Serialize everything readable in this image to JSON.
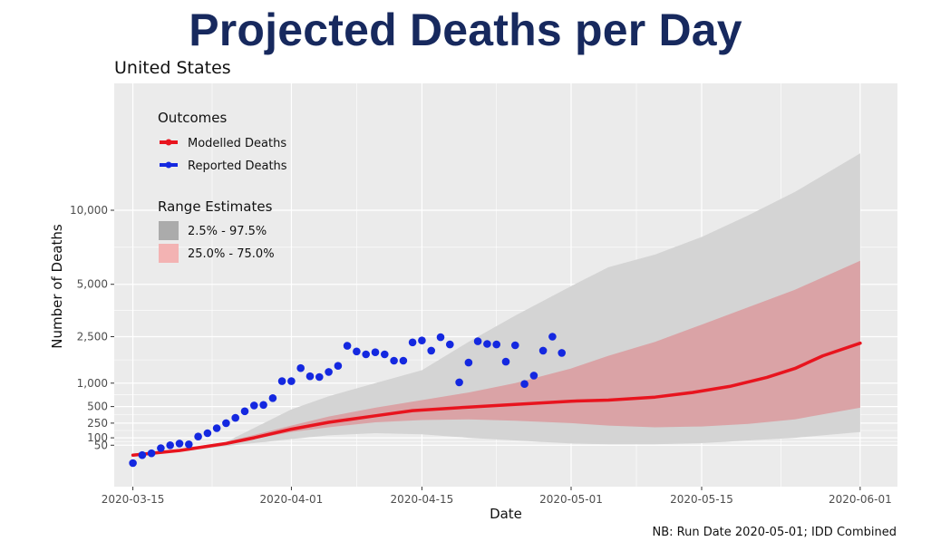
{
  "title": "Projected Deaths per Day",
  "subtitle": "United States",
  "footnote": "NB: Run Date 2020-05-01; IDD Combined",
  "colors": {
    "panel": "#ebebeb",
    "grid": "#ffffff",
    "modelled": "#e8141e",
    "reported": "#1428e0",
    "band_outer": "#d4d4d4",
    "band_inner": "#db9a9e",
    "legend_outer": "#ababab",
    "legend_inner": "#f3b3b3"
  },
  "chart_data": {
    "type": "line",
    "xlabel": "Date",
    "ylabel": "Number of Deaths",
    "x_ticks": [
      "2020-03-15",
      "2020-04-01",
      "2020-04-15",
      "2020-05-01",
      "2020-05-15",
      "2020-06-01"
    ],
    "y_ticks": [
      50,
      100,
      250,
      500,
      1000,
      2500,
      5000,
      10000
    ],
    "y_tick_labels": [
      "50",
      "100",
      "250",
      "500",
      "1,000",
      "2,500",
      "5,000",
      "10,000"
    ],
    "xlim": [
      "2020-03-13",
      "2020-06-05"
    ],
    "y_scale": "square-root",
    "legend": {
      "outcomes_title": "Outcomes",
      "outcomes": [
        "Modelled Deaths",
        "Reported Deaths"
      ],
      "range_title": "Range Estimates",
      "ranges": [
        "2.5% - 97.5%",
        "25.0% - 75.0%"
      ],
      "position": "top-left"
    },
    "modelled": [
      [
        "2020-03-15",
        10
      ],
      [
        "2020-03-20",
        25
      ],
      [
        "2020-03-25",
        60
      ],
      [
        "2020-03-28",
        100
      ],
      [
        "2020-04-01",
        180
      ],
      [
        "2020-04-05",
        260
      ],
      [
        "2020-04-10",
        350
      ],
      [
        "2020-04-14",
        430
      ],
      [
        "2020-04-20",
        490
      ],
      [
        "2020-04-25",
        540
      ],
      [
        "2020-05-01",
        600
      ],
      [
        "2020-05-05",
        620
      ],
      [
        "2020-05-10",
        680
      ],
      [
        "2020-05-14",
        780
      ],
      [
        "2020-05-18",
        920
      ],
      [
        "2020-05-22",
        1150
      ],
      [
        "2020-05-25",
        1400
      ],
      [
        "2020-05-28",
        1800
      ],
      [
        "2020-06-01",
        2250
      ]
    ],
    "band_2_5_97_5": [
      [
        "2020-03-15",
        8,
        12
      ],
      [
        "2020-03-20",
        20,
        32
      ],
      [
        "2020-03-25",
        45,
        70
      ],
      [
        "2020-04-01",
        90,
        450
      ],
      [
        "2020-04-05",
        120,
        700
      ],
      [
        "2020-04-10",
        140,
        1000
      ],
      [
        "2020-04-15",
        130,
        1350
      ],
      [
        "2020-04-20",
        100,
        2300
      ],
      [
        "2020-04-25",
        80,
        3400
      ],
      [
        "2020-05-01",
        60,
        4900
      ],
      [
        "2020-05-05",
        55,
        6000
      ],
      [
        "2020-05-10",
        55,
        6800
      ],
      [
        "2020-05-15",
        62,
        8000
      ],
      [
        "2020-05-20",
        80,
        9600
      ],
      [
        "2020-05-25",
        100,
        11500
      ],
      [
        "2020-06-01",
        150,
        15000
      ]
    ],
    "band_25_75": [
      [
        "2020-03-15",
        9,
        11
      ],
      [
        "2020-03-20",
        22,
        28
      ],
      [
        "2020-03-25",
        55,
        70
      ],
      [
        "2020-04-01",
        150,
        220
      ],
      [
        "2020-04-05",
        200,
        340
      ],
      [
        "2020-04-10",
        260,
        480
      ],
      [
        "2020-04-15",
        290,
        620
      ],
      [
        "2020-04-20",
        300,
        780
      ],
      [
        "2020-04-25",
        280,
        1000
      ],
      [
        "2020-05-01",
        250,
        1400
      ],
      [
        "2020-05-05",
        220,
        1800
      ],
      [
        "2020-05-10",
        200,
        2300
      ],
      [
        "2020-05-15",
        210,
        3000
      ],
      [
        "2020-05-20",
        240,
        3800
      ],
      [
        "2020-05-25",
        300,
        4700
      ],
      [
        "2020-06-01",
        480,
        6400
      ]
    ],
    "reported": [
      [
        "2020-03-15",
        0
      ],
      [
        "2020-03-16",
        10
      ],
      [
        "2020-03-17",
        15
      ],
      [
        "2020-03-18",
        35
      ],
      [
        "2020-03-19",
        50
      ],
      [
        "2020-03-20",
        60
      ],
      [
        "2020-03-21",
        55
      ],
      [
        "2020-03-22",
        110
      ],
      [
        "2020-03-23",
        140
      ],
      [
        "2020-03-24",
        190
      ],
      [
        "2020-03-25",
        250
      ],
      [
        "2020-03-26",
        320
      ],
      [
        "2020-03-27",
        420
      ],
      [
        "2020-03-28",
        520
      ],
      [
        "2020-03-29",
        530
      ],
      [
        "2020-03-30",
        660
      ],
      [
        "2020-03-31",
        1050
      ],
      [
        "2020-04-01",
        1050
      ],
      [
        "2020-04-02",
        1410
      ],
      [
        "2020-04-03",
        1180
      ],
      [
        "2020-04-04",
        1160
      ],
      [
        "2020-04-05",
        1300
      ],
      [
        "2020-04-06",
        1480
      ],
      [
        "2020-04-07",
        2150
      ],
      [
        "2020-04-08",
        1950
      ],
      [
        "2020-04-09",
        1850
      ],
      [
        "2020-04-10",
        1920
      ],
      [
        "2020-04-11",
        1850
      ],
      [
        "2020-04-12",
        1640
      ],
      [
        "2020-04-13",
        1640
      ],
      [
        "2020-04-14",
        2280
      ],
      [
        "2020-04-15",
        2350
      ],
      [
        "2020-04-16",
        1980
      ],
      [
        "2020-04-17",
        2480
      ],
      [
        "2020-04-18",
        2200
      ],
      [
        "2020-04-19",
        1020
      ],
      [
        "2020-04-20",
        1580
      ],
      [
        "2020-04-21",
        2320
      ],
      [
        "2020-04-22",
        2220
      ],
      [
        "2020-04-23",
        2200
      ],
      [
        "2020-04-24",
        1610
      ],
      [
        "2020-04-25",
        2170
      ],
      [
        "2020-04-26",
        980
      ],
      [
        "2020-04-27",
        1200
      ],
      [
        "2020-04-28",
        1980
      ],
      [
        "2020-04-29",
        2500
      ],
      [
        "2020-04-30",
        1900
      ]
    ]
  }
}
